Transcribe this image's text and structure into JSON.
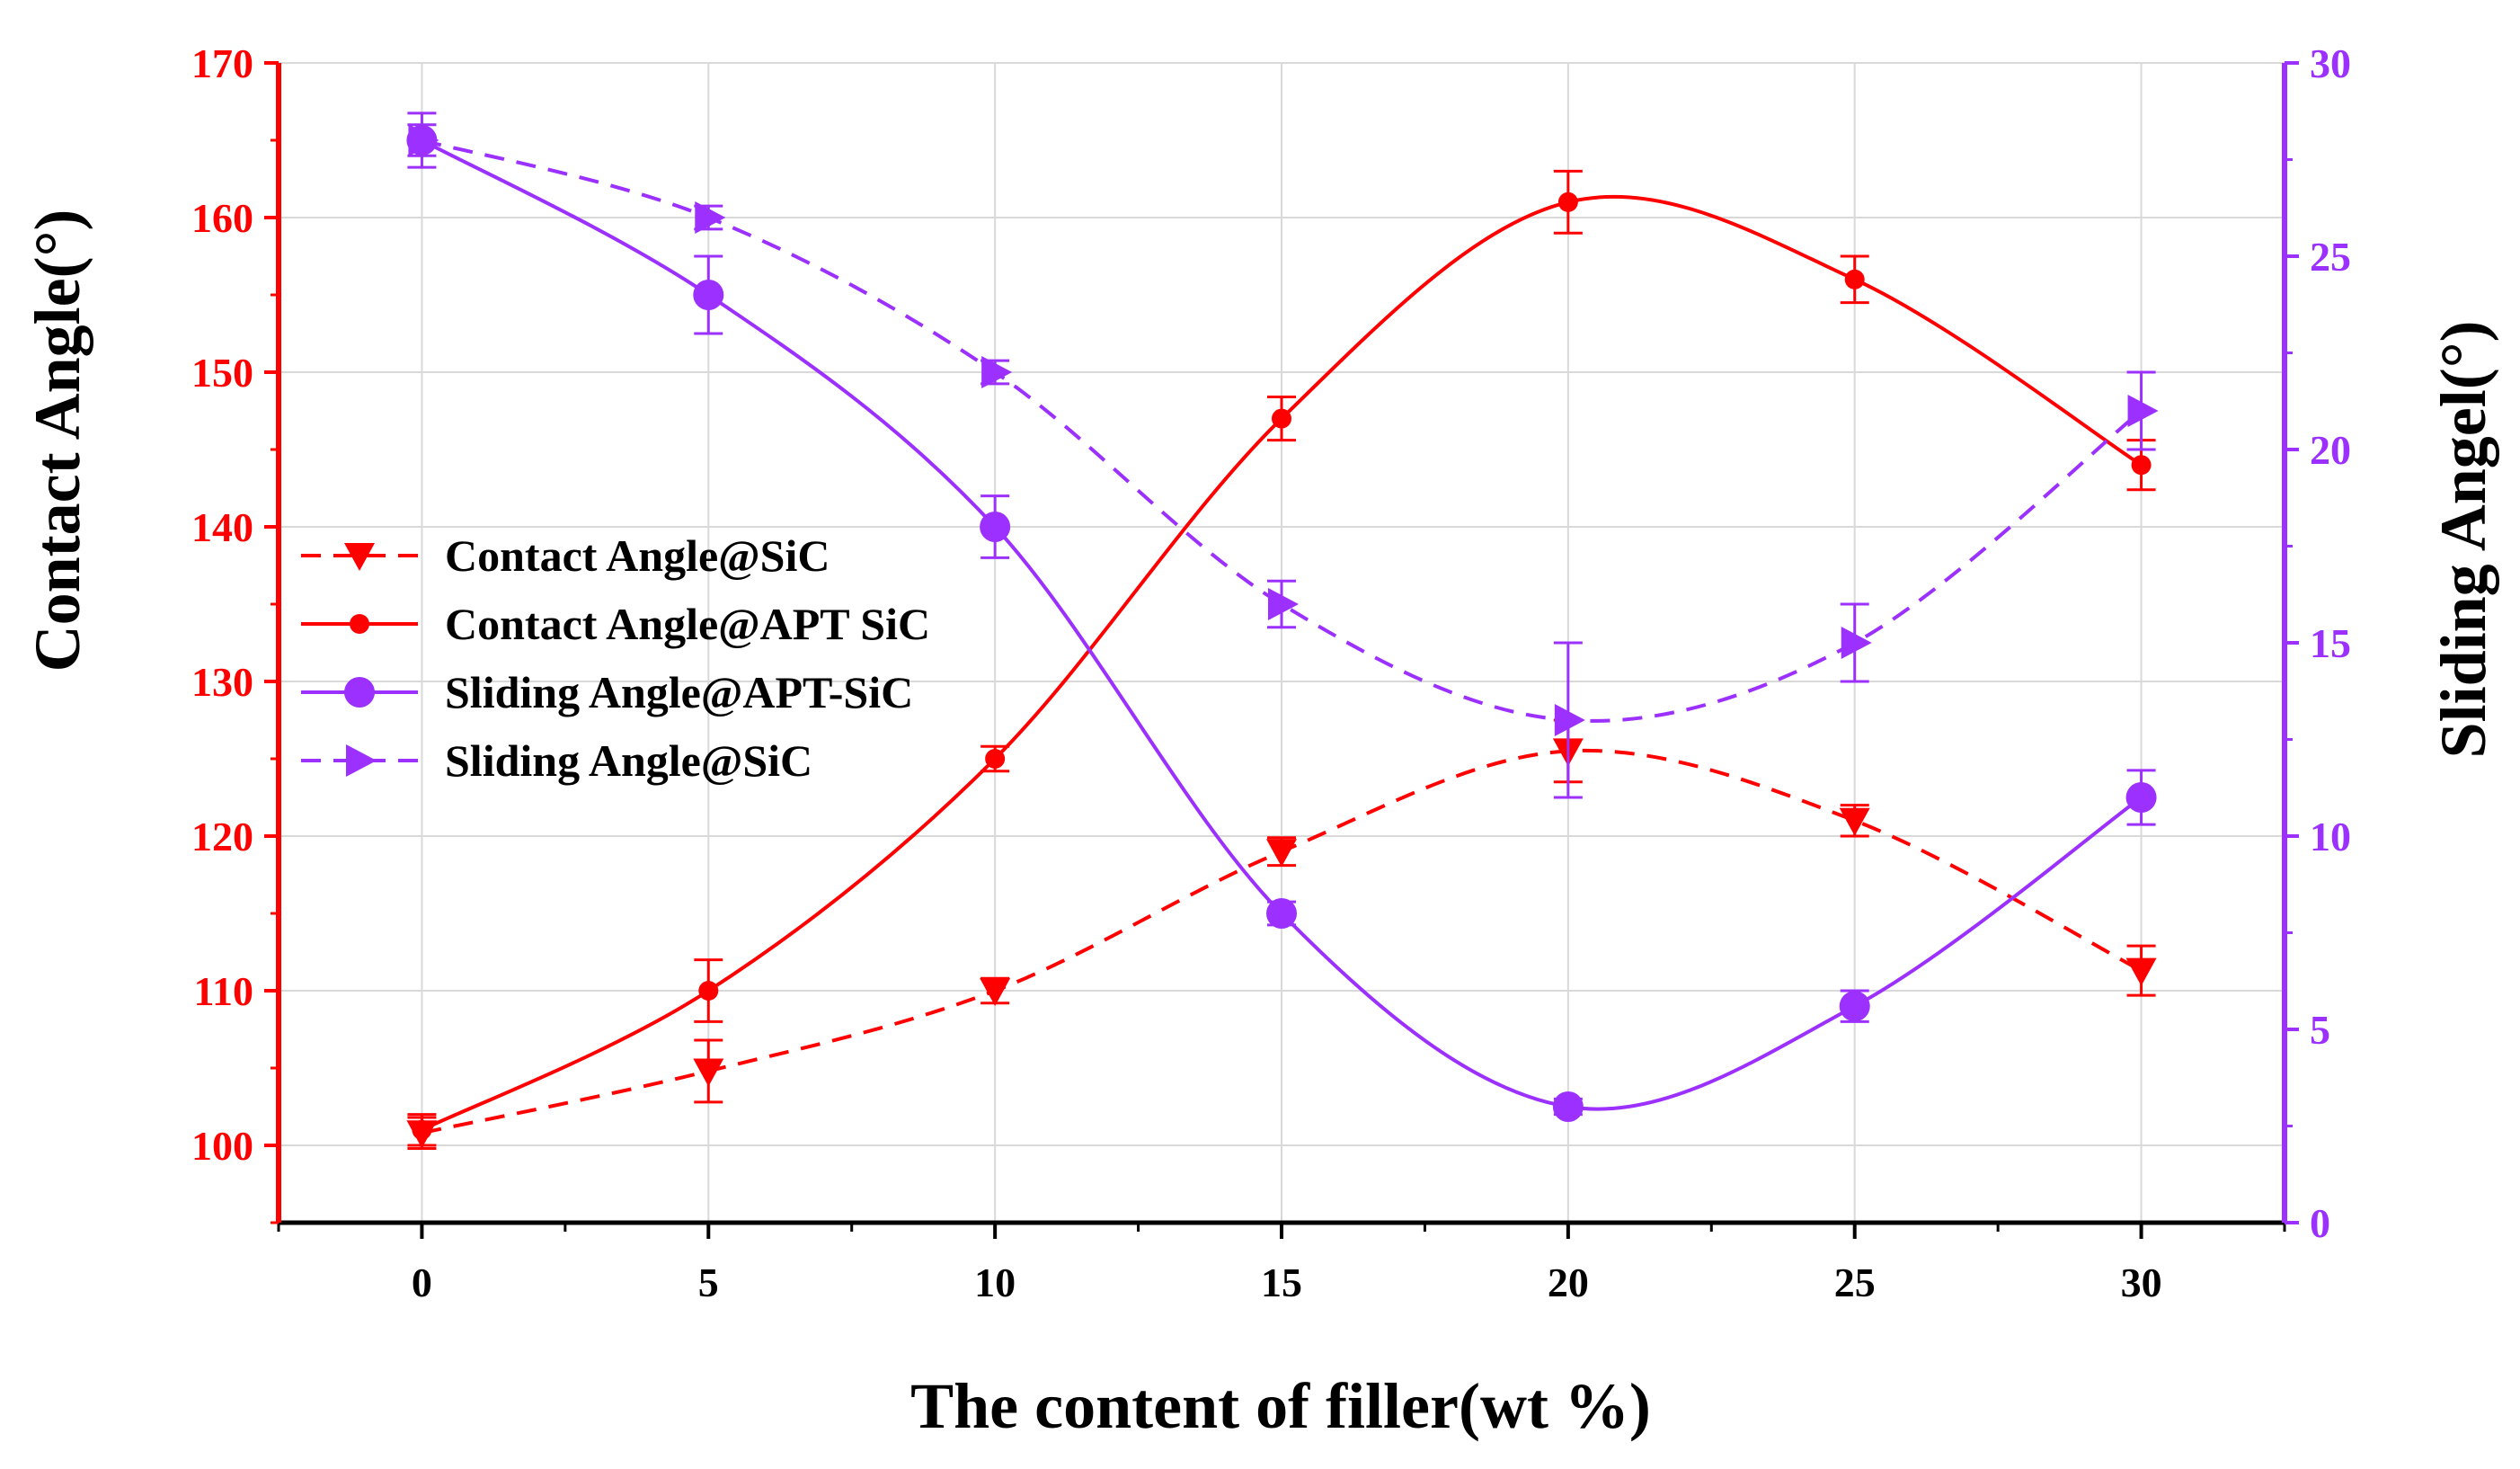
{
  "chart_data": {
    "type": "line",
    "xlabel": "The content of filler(wt %)",
    "ylabel_left": "Contact Angle(°)",
    "ylabel_right": "Sliding Angel(°)",
    "x_ticks": [
      0,
      5,
      10,
      15,
      20,
      25,
      30
    ],
    "xlim": [
      -2.5,
      32.5
    ],
    "y_left_ticks": [
      100,
      110,
      120,
      130,
      140,
      150,
      160,
      170
    ],
    "ylim_left": [
      95,
      170
    ],
    "y_right_ticks": [
      0,
      5,
      10,
      15,
      20,
      25,
      30
    ],
    "ylim_right": [
      0,
      30
    ],
    "grid": true,
    "colors": {
      "contact": "#ff0000",
      "sliding": "#9b30ff"
    },
    "legend_position": "center-left",
    "series": [
      {
        "name": "Contact Angle@SiC",
        "axis": "left",
        "color": "#ff0000",
        "dash": true,
        "marker": "triangle-down",
        "x": [
          0,
          5,
          10,
          15,
          20,
          25,
          30
        ],
        "values": [
          100.8,
          104.8,
          110,
          119,
          125.5,
          121,
          111.3
        ],
        "errors": [
          1.0,
          2.0,
          0.8,
          0.9,
          2.0,
          1.0,
          1.6
        ]
      },
      {
        "name": "Contact Angle@APT SiC",
        "axis": "left",
        "color": "#ff0000",
        "dash": false,
        "marker": "circle-small",
        "x": [
          0,
          5,
          10,
          15,
          20,
          25,
          30
        ],
        "values": [
          101,
          110,
          125,
          147,
          161,
          156,
          144
        ],
        "errors": [
          1.0,
          2.0,
          0.8,
          1.4,
          2.0,
          1.5,
          1.6
        ]
      },
      {
        "name": "Sliding Angle@APT-SiC",
        "axis": "right",
        "color": "#9b30ff",
        "dash": false,
        "marker": "circle-large",
        "x": [
          0,
          5,
          10,
          15,
          20,
          25,
          30
        ],
        "values": [
          28,
          24,
          18,
          8,
          3,
          5.6,
          11
        ],
        "errors": [
          0.7,
          1.0,
          0.8,
          0.3,
          0.2,
          0.4,
          0.7
        ]
      },
      {
        "name": "Sliding Angle@SiC",
        "axis": "right",
        "color": "#9b30ff",
        "dash": true,
        "marker": "triangle-right",
        "x": [
          0,
          5,
          10,
          15,
          20,
          25,
          30
        ],
        "values": [
          28,
          26,
          22,
          16,
          13,
          15,
          21
        ],
        "errors": [
          0.4,
          0.3,
          0.3,
          0.6,
          2.0,
          1.0,
          1.0
        ]
      }
    ]
  }
}
